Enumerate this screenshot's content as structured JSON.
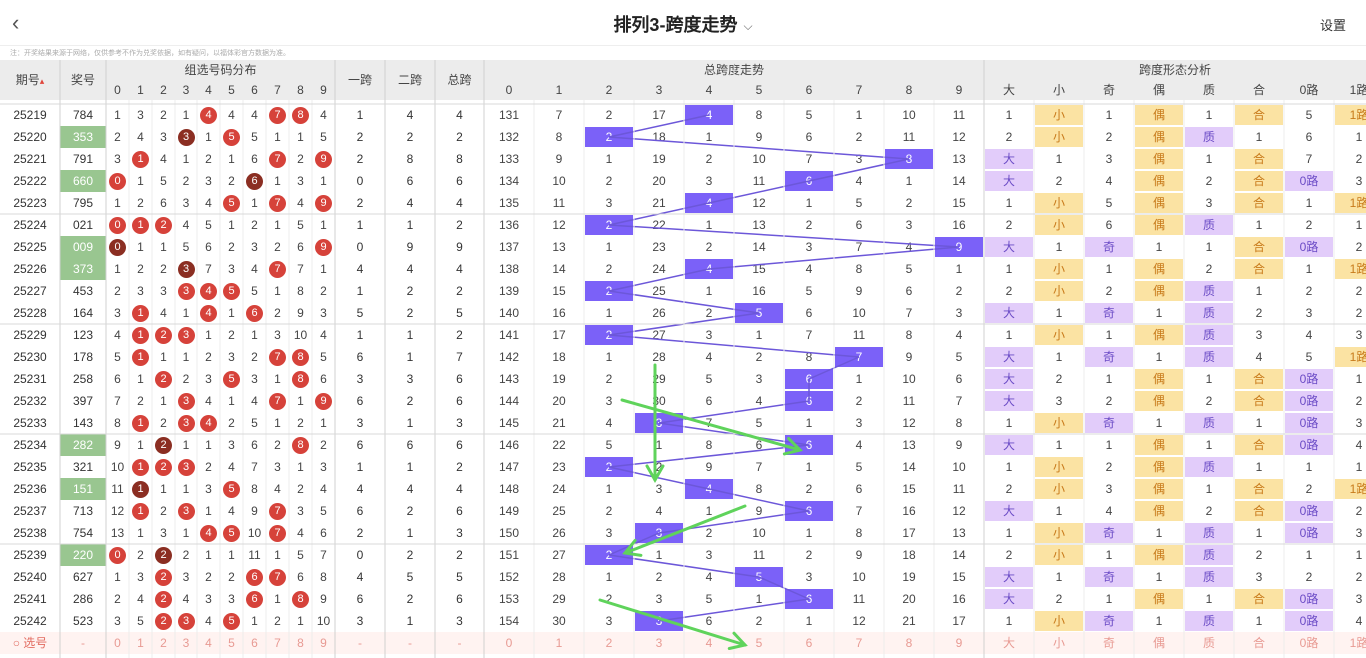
{
  "header": {
    "back_icon": "chevron-left-icon",
    "title": "排列3-跨度走势",
    "title_dropdown_icon": "chevron-down-icon",
    "settings_label": "设置",
    "note": "注：开奖结果来源于网络，仅供参考不作为兑奖依据，如有疑问，以福体彩官方数据为准。"
  },
  "table": {
    "group_headers": {
      "distribution": "组选号码分布",
      "span1": "一跨",
      "span2": "二跨",
      "span_total": "总跨",
      "trend": "总跨度走势",
      "form": "跨度形态分析"
    },
    "col_period": "期号",
    "sort_icon": "sort-up-icon",
    "col_prize": "奖号",
    "digits": [
      "0",
      "1",
      "2",
      "3",
      "4",
      "5",
      "6",
      "7",
      "8",
      "9"
    ],
    "form_headers": [
      "大",
      "小",
      "奇",
      "偶",
      "质",
      "合",
      "0路",
      "1路"
    ],
    "rows": [
      {
        "p": "25219",
        "n": "784",
        "hl": false,
        "dist": [
          "1",
          "3",
          "2",
          "1",
          "4",
          "4",
          "4",
          "7",
          "8",
          "4"
        ],
        "s1": "1",
        "s2": "4",
        "st": "4",
        "trend": [
          "131",
          "7",
          "2",
          "17",
          "4",
          "8",
          "5",
          "1",
          "10",
          "11"
        ],
        "form": [
          "1",
          "小",
          "1",
          "偶",
          "1",
          "合",
          "5",
          "1路"
        ]
      },
      {
        "p": "25220",
        "n": "353",
        "hl": true,
        "dist": [
          "2",
          "4",
          "3",
          "3",
          "1",
          "5",
          "5",
          "1",
          "1",
          "5"
        ],
        "s1": "2",
        "s2": "2",
        "st": "2",
        "trend": [
          "132",
          "8",
          "2",
          "18",
          "1",
          "9",
          "6",
          "2",
          "11",
          "12"
        ],
        "form": [
          "2",
          "小",
          "2",
          "偶",
          "质",
          "1",
          "6",
          "1"
        ]
      },
      {
        "p": "25221",
        "n": "791",
        "hl": false,
        "dist": [
          "3",
          "1",
          "4",
          "1",
          "2",
          "1",
          "6",
          "7",
          "2",
          "9"
        ],
        "s1": "2",
        "s2": "8",
        "st": "8",
        "trend": [
          "133",
          "9",
          "1",
          "19",
          "2",
          "10",
          "7",
          "3",
          "8",
          "13"
        ],
        "form": [
          "大",
          "1",
          "3",
          "偶",
          "1",
          "合",
          "7",
          "2"
        ]
      },
      {
        "p": "25222",
        "n": "660",
        "hl": true,
        "dist": [
          "0",
          "1",
          "5",
          "2",
          "3",
          "2",
          "6",
          "1",
          "3",
          "1"
        ],
        "s1": "0",
        "s2": "6",
        "st": "6",
        "trend": [
          "134",
          "10",
          "2",
          "20",
          "3",
          "11",
          "6",
          "4",
          "1",
          "14"
        ],
        "form": [
          "大",
          "2",
          "4",
          "偶",
          "2",
          "合",
          "0路",
          "3"
        ]
      },
      {
        "p": "25223",
        "n": "795",
        "hl": false,
        "dist": [
          "1",
          "2",
          "6",
          "3",
          "4",
          "5",
          "1",
          "7",
          "4",
          "9"
        ],
        "s1": "2",
        "s2": "4",
        "st": "4",
        "trend": [
          "135",
          "11",
          "3",
          "21",
          "4",
          "12",
          "1",
          "5",
          "2",
          "15"
        ],
        "form": [
          "1",
          "小",
          "5",
          "偶",
          "3",
          "合",
          "1",
          "1路"
        ]
      },
      {
        "p": "25224",
        "n": "021",
        "hl": false,
        "dist": [
          "0",
          "1",
          "2",
          "4",
          "5",
          "1",
          "2",
          "1",
          "5",
          "1"
        ],
        "s1": "1",
        "s2": "1",
        "st": "2",
        "trend": [
          "136",
          "12",
          "2",
          "22",
          "1",
          "13",
          "2",
          "6",
          "3",
          "16"
        ],
        "form": [
          "2",
          "小",
          "6",
          "偶",
          "质",
          "1",
          "2",
          "1"
        ]
      },
      {
        "p": "25225",
        "n": "009",
        "hl": true,
        "dist": [
          "0",
          "1",
          "1",
          "5",
          "6",
          "2",
          "3",
          "2",
          "6",
          "9"
        ],
        "s1": "0",
        "s2": "9",
        "st": "9",
        "trend": [
          "137",
          "13",
          "1",
          "23",
          "2",
          "14",
          "3",
          "7",
          "4",
          "9"
        ],
        "form": [
          "大",
          "1",
          "奇",
          "1",
          "1",
          "合",
          "0路",
          "2"
        ]
      },
      {
        "p": "25226",
        "n": "373",
        "hl": true,
        "dist": [
          "1",
          "2",
          "2",
          "3",
          "7",
          "3",
          "4",
          "7",
          "7",
          "1"
        ],
        "s1": "4",
        "s2": "4",
        "st": "4",
        "trend": [
          "138",
          "14",
          "2",
          "24",
          "4",
          "15",
          "4",
          "8",
          "5",
          "1"
        ],
        "form": [
          "1",
          "小",
          "1",
          "偶",
          "2",
          "合",
          "1",
          "1路"
        ]
      },
      {
        "p": "25227",
        "n": "453",
        "hl": false,
        "dist": [
          "2",
          "3",
          "3",
          "3",
          "4",
          "5",
          "5",
          "1",
          "8",
          "2"
        ],
        "s1": "1",
        "s2": "2",
        "st": "2",
        "trend": [
          "139",
          "15",
          "2",
          "25",
          "1",
          "16",
          "5",
          "9",
          "6",
          "2"
        ],
        "form": [
          "2",
          "小",
          "2",
          "偶",
          "质",
          "1",
          "2",
          "2"
        ]
      },
      {
        "p": "25228",
        "n": "164",
        "hl": false,
        "dist": [
          "3",
          "1",
          "4",
          "1",
          "4",
          "1",
          "6",
          "2",
          "9",
          "3"
        ],
        "s1": "5",
        "s2": "2",
        "st": "5",
        "trend": [
          "140",
          "16",
          "1",
          "26",
          "2",
          "5",
          "6",
          "10",
          "7",
          "3"
        ],
        "form": [
          "大",
          "1",
          "奇",
          "1",
          "质",
          "2",
          "3",
          "2"
        ]
      },
      {
        "p": "25229",
        "n": "123",
        "hl": false,
        "dist": [
          "4",
          "1",
          "2",
          "3",
          "1",
          "2",
          "1",
          "3",
          "10",
          "4"
        ],
        "s1": "1",
        "s2": "1",
        "st": "2",
        "trend": [
          "141",
          "17",
          "2",
          "27",
          "3",
          "1",
          "7",
          "11",
          "8",
          "4"
        ],
        "form": [
          "1",
          "小",
          "1",
          "偶",
          "质",
          "3",
          "4",
          "3"
        ]
      },
      {
        "p": "25230",
        "n": "178",
        "hl": false,
        "dist": [
          "5",
          "1",
          "1",
          "1",
          "2",
          "3",
          "2",
          "7",
          "8",
          "5"
        ],
        "s1": "6",
        "s2": "1",
        "st": "7",
        "trend": [
          "142",
          "18",
          "1",
          "28",
          "4",
          "2",
          "8",
          "7",
          "9",
          "5"
        ],
        "form": [
          "大",
          "1",
          "奇",
          "1",
          "质",
          "4",
          "5",
          "1路"
        ]
      },
      {
        "p": "25231",
        "n": "258",
        "hl": false,
        "dist": [
          "6",
          "1",
          "2",
          "2",
          "3",
          "5",
          "3",
          "1",
          "8",
          "6"
        ],
        "s1": "3",
        "s2": "3",
        "st": "6",
        "trend": [
          "143",
          "19",
          "2",
          "29",
          "5",
          "3",
          "6",
          "1",
          "10",
          "6"
        ],
        "form": [
          "大",
          "2",
          "1",
          "偶",
          "1",
          "合",
          "0路",
          "1"
        ]
      },
      {
        "p": "25232",
        "n": "397",
        "hl": false,
        "dist": [
          "7",
          "2",
          "1",
          "3",
          "4",
          "1",
          "4",
          "7",
          "1",
          "9"
        ],
        "s1": "6",
        "s2": "2",
        "st": "6",
        "trend": [
          "144",
          "20",
          "3",
          "30",
          "6",
          "4",
          "6",
          "2",
          "11",
          "7"
        ],
        "form": [
          "大",
          "3",
          "2",
          "偶",
          "2",
          "合",
          "0路",
          "2"
        ]
      },
      {
        "p": "25233",
        "n": "143",
        "hl": false,
        "dist": [
          "8",
          "1",
          "2",
          "3",
          "4",
          "2",
          "5",
          "1",
          "2",
          "1"
        ],
        "s1": "3",
        "s2": "1",
        "st": "3",
        "trend": [
          "145",
          "21",
          "4",
          "3",
          "7",
          "5",
          "1",
          "3",
          "12",
          "8"
        ],
        "form": [
          "1",
          "小",
          "奇",
          "1",
          "质",
          "1",
          "0路",
          "3"
        ]
      },
      {
        "p": "25234",
        "n": "282",
        "hl": true,
        "dist": [
          "9",
          "1",
          "2",
          "1",
          "1",
          "3",
          "6",
          "2",
          "8",
          "2"
        ],
        "s1": "6",
        "s2": "6",
        "st": "6",
        "trend": [
          "146",
          "22",
          "5",
          "1",
          "8",
          "6",
          "6",
          "4",
          "13",
          "9"
        ],
        "form": [
          "大",
          "1",
          "1",
          "偶",
          "1",
          "合",
          "0路",
          "4"
        ]
      },
      {
        "p": "25235",
        "n": "321",
        "hl": false,
        "dist": [
          "10",
          "1",
          "2",
          "3",
          "2",
          "4",
          "7",
          "3",
          "1",
          "3"
        ],
        "s1": "1",
        "s2": "1",
        "st": "2",
        "trend": [
          "147",
          "23",
          "2",
          "2",
          "9",
          "7",
          "1",
          "5",
          "14",
          "10"
        ],
        "form": [
          "1",
          "小",
          "2",
          "偶",
          "质",
          "1",
          "1",
          "1"
        ]
      },
      {
        "p": "25236",
        "n": "151",
        "hl": true,
        "dist": [
          "11",
          "1",
          "1",
          "1",
          "3",
          "5",
          "8",
          "4",
          "2",
          "4"
        ],
        "s1": "4",
        "s2": "4",
        "st": "4",
        "trend": [
          "148",
          "24",
          "1",
          "3",
          "4",
          "8",
          "2",
          "6",
          "15",
          "11"
        ],
        "form": [
          "2",
          "小",
          "3",
          "偶",
          "1",
          "合",
          "2",
          "1路"
        ]
      },
      {
        "p": "25237",
        "n": "713",
        "hl": false,
        "dist": [
          "12",
          "1",
          "2",
          "3",
          "1",
          "4",
          "9",
          "7",
          "3",
          "5"
        ],
        "s1": "6",
        "s2": "2",
        "st": "6",
        "trend": [
          "149",
          "25",
          "2",
          "4",
          "1",
          "9",
          "6",
          "7",
          "16",
          "12"
        ],
        "form": [
          "大",
          "1",
          "4",
          "偶",
          "2",
          "合",
          "0路",
          "2"
        ]
      },
      {
        "p": "25238",
        "n": "754",
        "hl": false,
        "dist": [
          "13",
          "1",
          "3",
          "1",
          "4",
          "5",
          "10",
          "7",
          "4",
          "6"
        ],
        "s1": "2",
        "s2": "1",
        "st": "3",
        "trend": [
          "150",
          "26",
          "3",
          "3",
          "2",
          "10",
          "1",
          "8",
          "17",
          "13"
        ],
        "form": [
          "1",
          "小",
          "奇",
          "1",
          "质",
          "1",
          "0路",
          "3"
        ]
      },
      {
        "p": "25239",
        "n": "220",
        "hl": true,
        "dist": [
          "0",
          "2",
          "2",
          "2",
          "1",
          "1",
          "11",
          "1",
          "5",
          "7"
        ],
        "s1": "0",
        "s2": "2",
        "st": "2",
        "trend": [
          "151",
          "27",
          "2",
          "1",
          "3",
          "11",
          "2",
          "9",
          "18",
          "14"
        ],
        "form": [
          "2",
          "小",
          "1",
          "偶",
          "质",
          "2",
          "1",
          "1"
        ]
      },
      {
        "p": "25240",
        "n": "627",
        "hl": false,
        "dist": [
          "1",
          "3",
          "2",
          "3",
          "2",
          "2",
          "6",
          "7",
          "6",
          "8"
        ],
        "s1": "4",
        "s2": "5",
        "st": "5",
        "trend": [
          "152",
          "28",
          "1",
          "2",
          "4",
          "5",
          "3",
          "10",
          "19",
          "15"
        ],
        "form": [
          "大",
          "1",
          "奇",
          "1",
          "质",
          "3",
          "2",
          "2"
        ]
      },
      {
        "p": "25241",
        "n": "286",
        "hl": false,
        "dist": [
          "2",
          "4",
          "2",
          "4",
          "3",
          "3",
          "6",
          "1",
          "8",
          "9"
        ],
        "s1": "6",
        "s2": "2",
        "st": "6",
        "trend": [
          "153",
          "29",
          "2",
          "3",
          "5",
          "1",
          "6",
          "11",
          "20",
          "16"
        ],
        "form": [
          "大",
          "2",
          "1",
          "偶",
          "1",
          "合",
          "0路",
          "3"
        ]
      },
      {
        "p": "25242",
        "n": "523",
        "hl": false,
        "dist": [
          "3",
          "5",
          "2",
          "3",
          "4",
          "5",
          "1",
          "2",
          "1",
          "10"
        ],
        "s1": "3",
        "s2": "1",
        "st": "3",
        "trend": [
          "154",
          "30",
          "3",
          "3",
          "6",
          "2",
          "1",
          "12",
          "21",
          "17"
        ],
        "form": [
          "1",
          "小",
          "奇",
          "1",
          "质",
          "1",
          "0路",
          "4"
        ]
      }
    ],
    "pick_row": {
      "radio_icon": "radio-circle-icon",
      "label": "选号",
      "prize": "-",
      "digits": [
        "0",
        "1",
        "2",
        "3",
        "4",
        "5",
        "6",
        "7",
        "8",
        "9"
      ],
      "s1": "-",
      "s2": "-",
      "st": "-",
      "trend": [
        "0",
        "1",
        "2",
        "3",
        "4",
        "5",
        "6",
        "7",
        "8",
        "9"
      ],
      "form": [
        "大",
        "小",
        "奇",
        "偶",
        "质",
        "合",
        "0路",
        "1路"
      ]
    }
  },
  "colors": {
    "header_bg": "#ececec",
    "purple_cell": "#7b61f8",
    "red_ball": "#d6423a",
    "dark_ball": "#8b2e22",
    "green_cell": "#99c690",
    "yellow_cell": "#fbe3a3",
    "lilac_cell": "#e2ccfa",
    "connector": "#6c57d9",
    "annotation_arrow": "#5fd35b"
  },
  "annotations": {
    "arrow_icons": [
      "green-arrow-icon",
      "green-arrow-icon",
      "green-arrow-icon",
      "green-arrow-icon"
    ]
  }
}
